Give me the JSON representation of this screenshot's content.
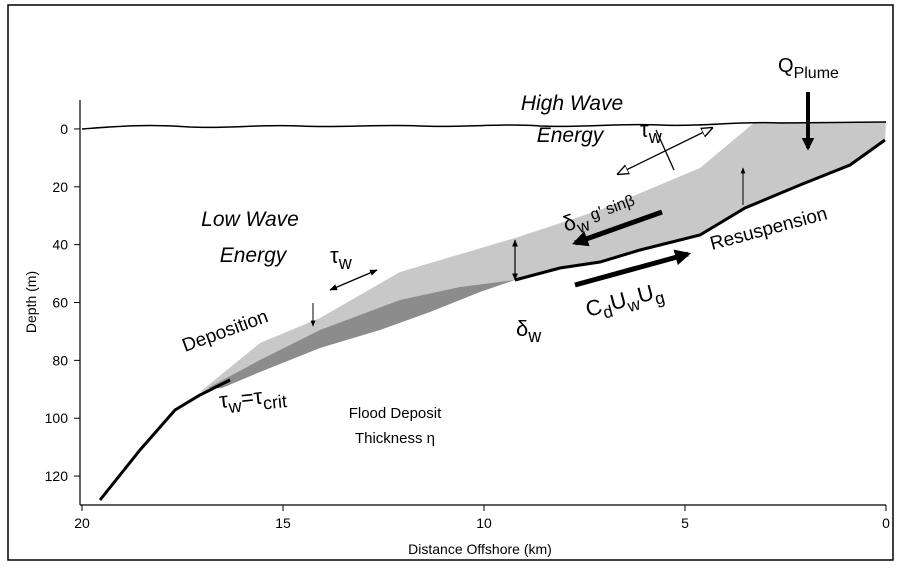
{
  "axes": {
    "x_label": "Distance Offshore (km)",
    "y_label": "Depth (m)",
    "xlim": [
      20,
      0
    ],
    "xticks": [
      20,
      15,
      10,
      5,
      0
    ],
    "ylim": [
      -10,
      130
    ],
    "yticks": [
      0,
      20,
      40,
      60,
      80,
      100,
      120
    ]
  },
  "annotations": {
    "q_plume": {
      "symbol": "Q",
      "sub": "Plume"
    },
    "high_wave": [
      "High Wave",
      "Energy"
    ],
    "tau_high": {
      "symbol": "τ",
      "sub": "w"
    },
    "low_wave": [
      "Low Wave",
      "Energy"
    ],
    "tau_low": {
      "symbol": "τ",
      "sub": "w"
    },
    "deposition": "Deposition",
    "tau_crit": {
      "a": "τ",
      "a_sub": "w",
      "eq": "=τ",
      "b_sub": "crit"
    },
    "flood_deposit": [
      "Flood Deposit",
      "Thickness η"
    ],
    "delta_w": {
      "symbol": "δ",
      "sub": "w"
    },
    "gravity_term": {
      "symbol": "δ",
      "sub": "w",
      "rest": " g' sinβ"
    },
    "drag_term": {
      "c": "C",
      "c_sub": "d",
      "u": "U",
      "u_sub": "w",
      "u2": "U",
      "u2_sub": "g"
    },
    "resuspension": "Resuspension"
  }
}
